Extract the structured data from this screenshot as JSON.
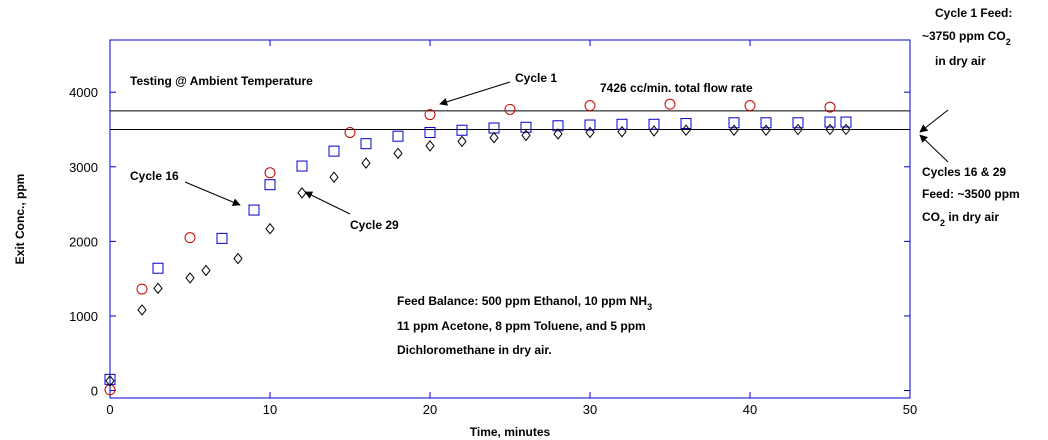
{
  "chart_data": {
    "type": "scatter",
    "xlabel": "Time, minutes",
    "ylabel": "Exit Conc., ppm",
    "xlim": [
      0,
      50
    ],
    "ylim": [
      -100,
      4700
    ],
    "xticks": [
      0,
      10,
      20,
      30,
      40,
      50
    ],
    "yticks": [
      0,
      1000,
      2000,
      3000,
      4000
    ],
    "series": [
      {
        "name": "Cycle 1",
        "color": "#cc0000",
        "marker": "circle",
        "x": [
          0,
          2,
          5,
          10,
          15,
          20,
          25,
          30,
          35,
          40,
          45
        ],
        "values": [
          10,
          1360,
          2050,
          2920,
          3460,
          3700,
          3770,
          3820,
          3840,
          3820,
          3800
        ]
      },
      {
        "name": "Cycle 16",
        "color": "#0000cc",
        "marker": "square",
        "x": [
          0,
          3,
          7,
          9,
          10,
          12,
          14,
          16,
          18,
          20,
          22,
          24,
          26,
          28,
          30,
          32,
          34,
          36,
          39,
          41,
          43,
          45,
          46
        ],
        "values": [
          150,
          1640,
          2040,
          2420,
          2760,
          3010,
          3210,
          3310,
          3410,
          3460,
          3490,
          3520,
          3530,
          3550,
          3560,
          3570,
          3570,
          3580,
          3590,
          3590,
          3590,
          3600,
          3600
        ]
      },
      {
        "name": "Cycle 29",
        "color": "#000000",
        "marker": "diamond",
        "x": [
          0,
          2,
          3,
          5,
          6,
          8,
          10,
          12,
          14,
          16,
          18,
          20,
          22,
          24,
          26,
          28,
          30,
          32,
          34,
          36,
          39,
          41,
          43,
          45,
          46
        ],
        "values": [
          130,
          1080,
          1370,
          1510,
          1610,
          1770,
          2170,
          2650,
          2860,
          3050,
          3180,
          3280,
          3340,
          3390,
          3420,
          3440,
          3460,
          3470,
          3480,
          3490,
          3490,
          3490,
          3500,
          3500,
          3500
        ]
      }
    ],
    "hlines": [
      3750,
      3500
    ],
    "annotations": [
      {
        "text": "Testing @ Ambient Temperature"
      },
      {
        "text": "7426 cc/min. total flow rate"
      },
      {
        "text": "Feed Balance: 500 ppm Ethanol, 10 ppm NH",
        "sub": "3"
      },
      {
        "text": "11 ppm Acetone, 8 ppm Toluene, and 5 ppm"
      },
      {
        "text": "Dichloromethane in dry air."
      },
      {
        "text": "Cycle 1 Feed:"
      },
      {
        "text": "~3750 ppm CO",
        "sub": "2"
      },
      {
        "text": "in dry air"
      },
      {
        "text": "Cycles 16 & 29"
      },
      {
        "text": "Feed: ~3500 ppm"
      },
      {
        "text": "CO",
        "sub": "2",
        "text2": " in dry air"
      }
    ]
  }
}
